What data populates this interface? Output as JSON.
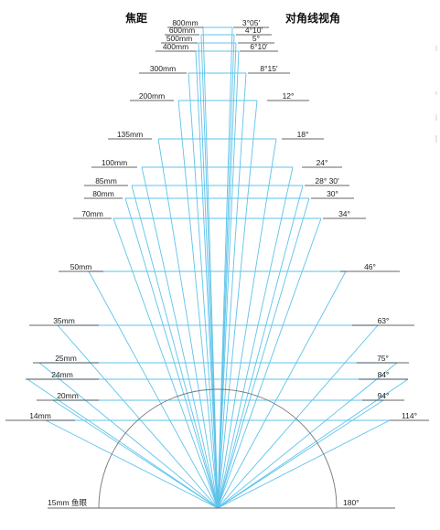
{
  "headers": {
    "focal_length": "焦距",
    "diagonal_angle": "对角线视角"
  },
  "lenses": [
    {
      "focal": "800mm",
      "angle": "3°05′"
    },
    {
      "focal": "600mm",
      "angle": "4°10′"
    },
    {
      "focal": "500mm",
      "angle": "5°"
    },
    {
      "focal": "400mm",
      "angle": "6°10′"
    },
    {
      "focal": "300mm",
      "angle": "8°15′"
    },
    {
      "focal": "200mm",
      "angle": "12°"
    },
    {
      "focal": "135mm",
      "angle": "18°"
    },
    {
      "focal": "100mm",
      "angle": "24°"
    },
    {
      "focal": "85mm",
      "angle": "28° 30′"
    },
    {
      "focal": "80mm",
      "angle": "30°"
    },
    {
      "focal": "70mm",
      "angle": "34°"
    },
    {
      "focal": "50mm",
      "angle": "46°"
    },
    {
      "focal": "35mm",
      "angle": "63°"
    },
    {
      "focal": "25mm",
      "angle": "75°"
    },
    {
      "focal": "24mm",
      "angle": "84°"
    },
    {
      "focal": "20mm",
      "angle": "94°"
    },
    {
      "focal": "14mm",
      "angle": "114°"
    }
  ],
  "fisheye": {
    "focal": "15mm 鱼眼",
    "angle": "180°"
  },
  "colors": {
    "ray": "#5ec3ea",
    "leader": "#333333"
  }
}
